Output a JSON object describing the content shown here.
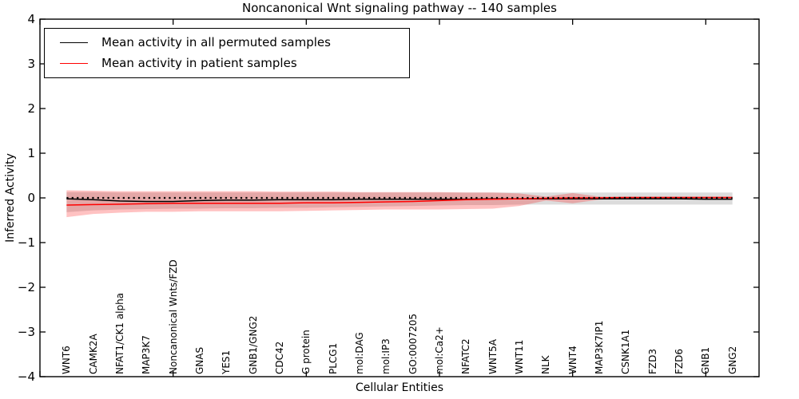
{
  "chart_data": {
    "type": "line",
    "title": "Noncanonical Wnt signaling pathway -- 140 samples",
    "xlabel": "Cellular Entities",
    "ylabel": "Inferred Activity",
    "ylim": [
      -4,
      4
    ],
    "grid": false,
    "ytick_values": [
      4,
      3,
      2,
      1,
      0,
      -1,
      -2,
      -3,
      -4
    ],
    "ytick_labels": [
      "4",
      "3",
      "2",
      "1",
      "0",
      "−1",
      "−2",
      "−3",
      "−4"
    ],
    "x_numeric_ticks": [
      0,
      5,
      10,
      15,
      20,
      25
    ],
    "categories": [
      "WNT6",
      "CAMK2A",
      "NFAT1/CK1 alpha",
      "MAP3K7",
      "Noncanonical Wnts/FZD",
      "GNAS",
      "YES1",
      "GNB1/GNG2",
      "CDC42",
      "G protein",
      "PLCG1",
      "mol:DAG",
      "mol:IP3",
      "GO:0007205",
      "mol:Ca2+",
      "NFATC2",
      "WNT5A",
      "WNT11",
      "NLK",
      "WNT4",
      "MAP3K7IP1",
      "CSNK1A1",
      "FZD3",
      "FZD6",
      "GNB1",
      "GNG2"
    ],
    "series": [
      {
        "name": "Mean activity in all permuted samples",
        "color": "#000000",
        "values": [
          -0.02,
          -0.04,
          -0.07,
          -0.08,
          -0.08,
          -0.06,
          -0.05,
          -0.05,
          -0.04,
          -0.04,
          -0.04,
          -0.03,
          -0.03,
          -0.03,
          -0.03,
          -0.03,
          -0.02,
          -0.02,
          -0.02,
          -0.02,
          -0.02,
          -0.02,
          -0.02,
          -0.02,
          -0.03,
          -0.03
        ]
      },
      {
        "name": "Mean activity in patient samples",
        "color": "#ff0000",
        "values": [
          -0.16,
          -0.15,
          -0.14,
          -0.13,
          -0.12,
          -0.12,
          -0.12,
          -0.12,
          -0.12,
          -0.11,
          -0.11,
          -0.1,
          -0.09,
          -0.08,
          -0.06,
          -0.04,
          -0.03,
          -0.02,
          -0.01,
          0.0,
          0.0,
          0.01,
          0.01,
          0.01,
          0.01,
          0.01
        ]
      }
    ],
    "bands": [
      {
        "name": "permuted samples std band",
        "color": "#8a8a8a",
        "opacity": 0.3,
        "upper": [
          0.13,
          0.13,
          0.12,
          0.12,
          0.12,
          0.12,
          0.12,
          0.12,
          0.12,
          0.12,
          0.12,
          0.12,
          0.12,
          0.12,
          0.12,
          0.12,
          0.12,
          0.12,
          0.12,
          0.12,
          0.12,
          0.12,
          0.12,
          0.12,
          0.12,
          0.12
        ],
        "lower": [
          -0.32,
          -0.28,
          -0.26,
          -0.25,
          -0.24,
          -0.24,
          -0.23,
          -0.23,
          -0.22,
          -0.22,
          -0.21,
          -0.2,
          -0.19,
          -0.18,
          -0.17,
          -0.16,
          -0.16,
          -0.15,
          -0.15,
          -0.15,
          -0.15,
          -0.15,
          -0.15,
          -0.15,
          -0.15,
          -0.15
        ]
      },
      {
        "name": "patient samples std band",
        "color": "#ff0000",
        "opacity": 0.24,
        "upper": [
          0.17,
          0.16,
          0.15,
          0.15,
          0.15,
          0.15,
          0.15,
          0.15,
          0.14,
          0.14,
          0.14,
          0.13,
          0.13,
          0.13,
          0.13,
          0.12,
          0.12,
          0.1,
          0.03,
          0.11,
          0.03,
          0.03,
          0.03,
          0.03,
          0.03,
          0.03
        ],
        "lower": [
          -0.43,
          -0.36,
          -0.33,
          -0.31,
          -0.31,
          -0.3,
          -0.3,
          -0.3,
          -0.3,
          -0.29,
          -0.28,
          -0.27,
          -0.26,
          -0.26,
          -0.26,
          -0.25,
          -0.24,
          -0.18,
          -0.06,
          -0.12,
          -0.04,
          -0.02,
          -0.02,
          -0.02,
          -0.02,
          -0.02
        ]
      }
    ],
    "reference_line": {
      "y": 0,
      "style": "dotted",
      "color": "#000000"
    },
    "legend": {
      "position": "upper left",
      "entries": [
        {
          "label": "Mean activity in all permuted samples",
          "color": "#000000"
        },
        {
          "label": "Mean activity in patient samples",
          "color": "#ff0000"
        }
      ]
    }
  }
}
